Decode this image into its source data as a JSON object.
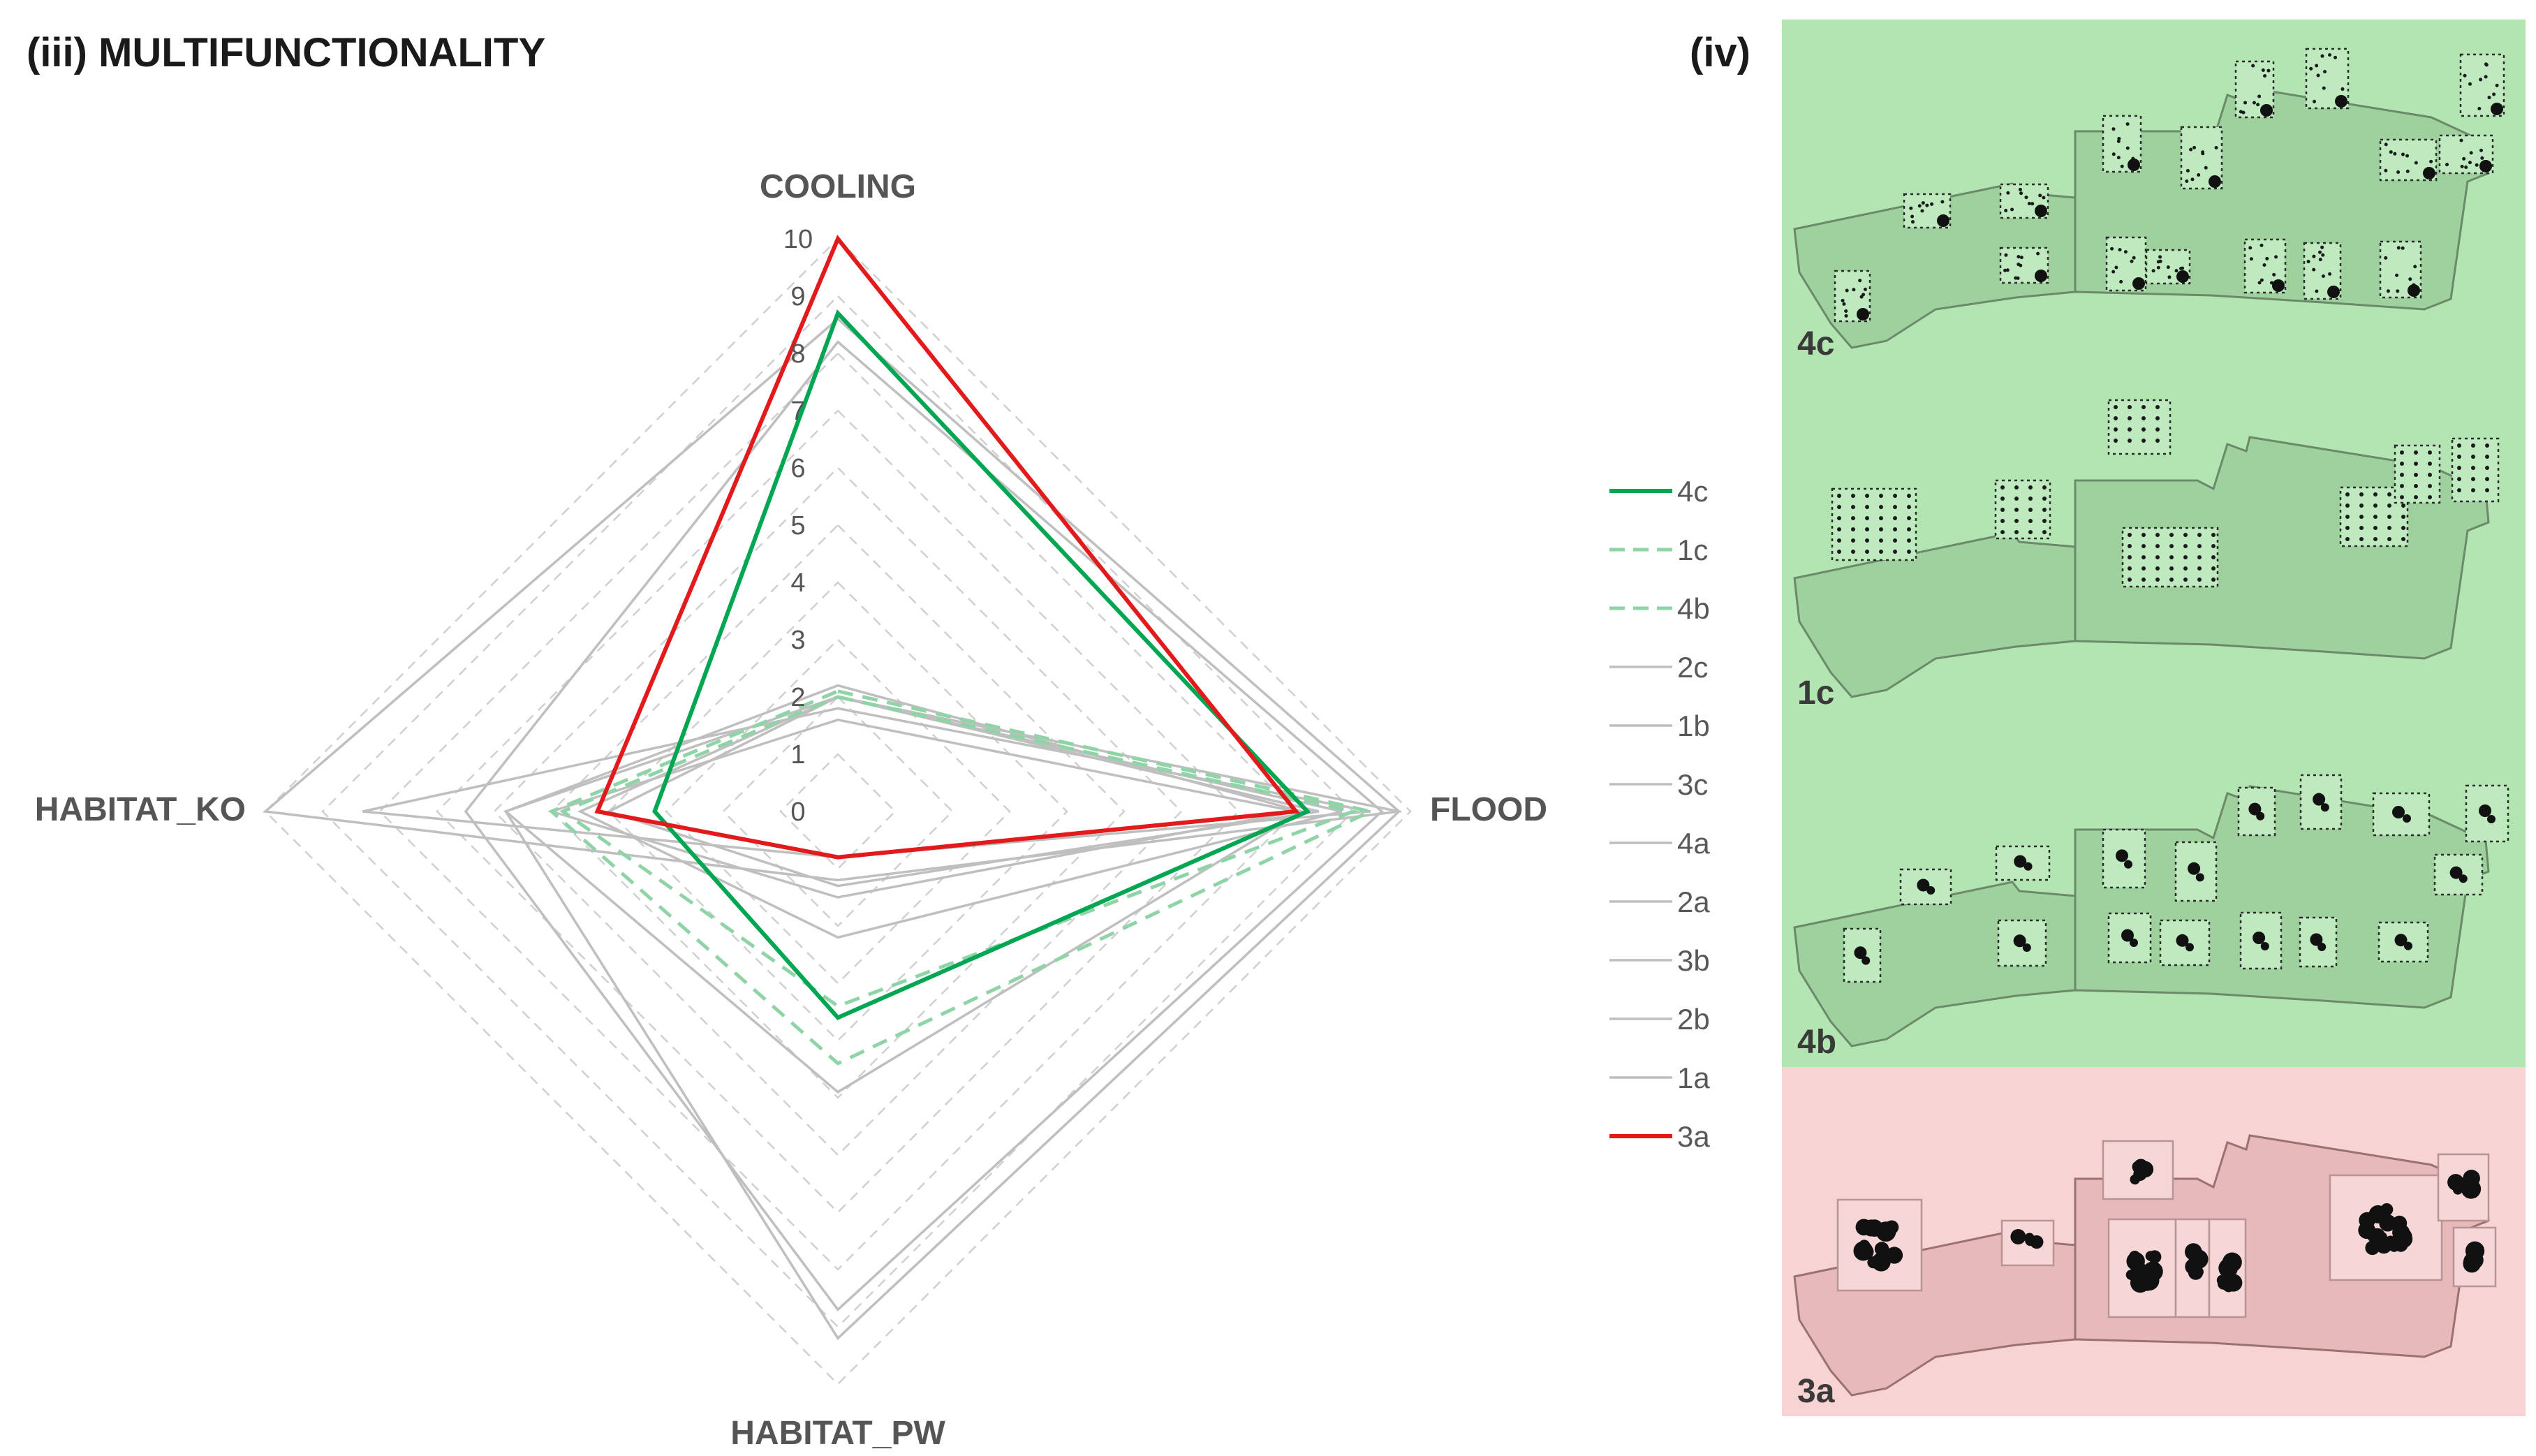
{
  "panel_iii_title": "(iii) MULTIFUNCTIONALITY",
  "panel_iv_title": "(iv)",
  "colors": {
    "green": "#00a651",
    "light_green": "#8fd4a6",
    "grey": "#bfbfbf",
    "red": "#e31a1c",
    "grid": "#d0d0d0",
    "green_panel_bg": "#b3e5b3",
    "red_panel_bg": "#f8d3d3"
  },
  "chart_data": {
    "type": "radar",
    "axes": [
      "COOLING",
      "FLOOD",
      "HABITAT_PW",
      "HABITAT_KO"
    ],
    "rmax": 10,
    "ticks": [
      "0",
      "1",
      "2",
      "3",
      "4",
      "5",
      "6",
      "7",
      "8",
      "9",
      "10"
    ],
    "series": [
      {
        "name": "2c",
        "style": "grey",
        "values": [
          2.2,
          8.1,
          4.9,
          5.8
        ]
      },
      {
        "name": "1b",
        "style": "grey",
        "values": [
          2.0,
          9.8,
          9.2,
          5.8
        ]
      },
      {
        "name": "3c",
        "style": "grey",
        "values": [
          8.2,
          9.5,
          8.7,
          6.5
        ]
      },
      {
        "name": "4a",
        "style": "grey",
        "values": [
          8.6,
          9.8,
          1.2,
          10.0
        ]
      },
      {
        "name": "2a",
        "style": "grey",
        "values": [
          1.8,
          9.3,
          0.8,
          8.3
        ]
      },
      {
        "name": "3b",
        "style": "grey",
        "values": [
          1.6,
          8.0,
          1.5,
          5.0
        ]
      },
      {
        "name": "2b",
        "style": "grey",
        "values": [
          2.0,
          8.8,
          2.2,
          4.5
        ]
      },
      {
        "name": "1a",
        "style": "grey",
        "values": [
          2.0,
          8.4,
          1.3,
          4.0
        ]
      },
      {
        "name": "1c",
        "style": "light_green_dashed",
        "values": [
          2.1,
          9.3,
          4.4,
          5.0
        ]
      },
      {
        "name": "4b",
        "style": "light_green_dashed",
        "values": [
          2.0,
          9.0,
          3.4,
          4.8
        ]
      },
      {
        "name": "4c",
        "style": "green",
        "values": [
          8.7,
          8.2,
          3.6,
          3.2
        ]
      },
      {
        "name": "3a",
        "style": "red",
        "values": [
          10.0,
          8.0,
          0.8,
          4.2
        ]
      }
    ],
    "legend": [
      "4c",
      "1c",
      "4b",
      "2c",
      "1b",
      "3c",
      "4a",
      "2a",
      "3b",
      "2b",
      "1a",
      "3a"
    ],
    "legend_styles": [
      "green",
      "light_green_dashed",
      "light_green_dashed",
      "grey",
      "grey",
      "grey",
      "grey",
      "grey",
      "grey",
      "grey",
      "grey",
      "red"
    ]
  },
  "maps": [
    {
      "label": "4c",
      "variant": "green"
    },
    {
      "label": "1c",
      "variant": "green"
    },
    {
      "label": "4b",
      "variant": "green"
    },
    {
      "label": "3a",
      "variant": "red"
    }
  ]
}
